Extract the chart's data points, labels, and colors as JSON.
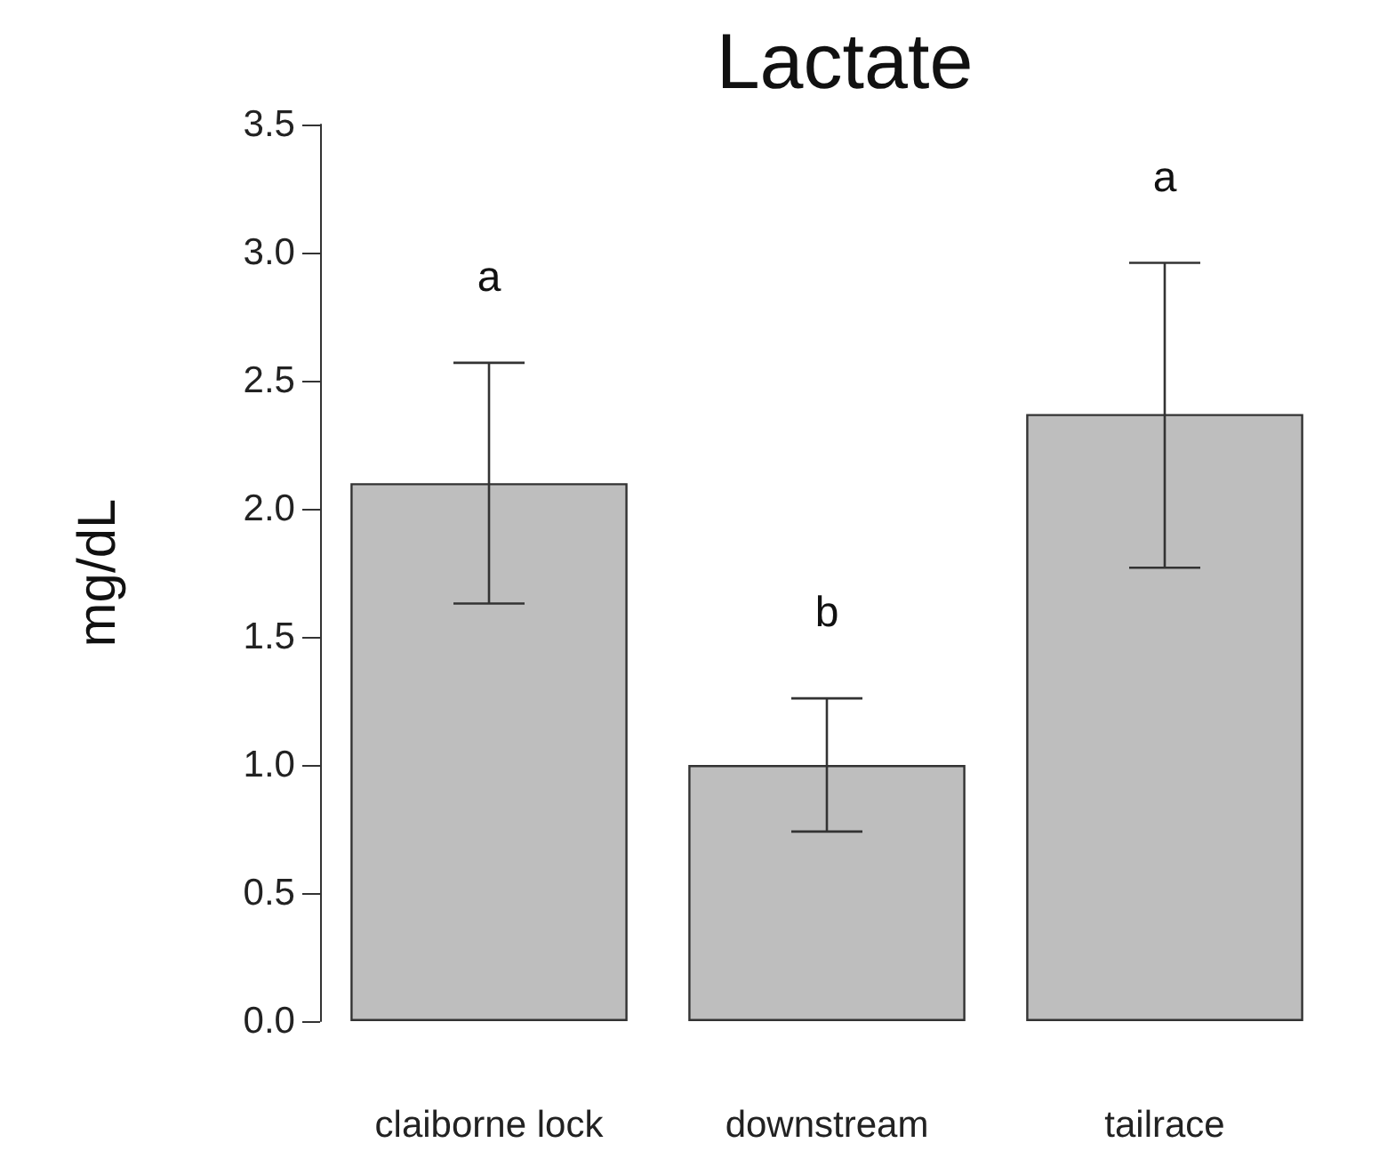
{
  "chart_data": {
    "type": "bar",
    "title": "Lactate",
    "ylabel": "mg/dL",
    "categories": [
      "claiborne lock",
      "downstream",
      "tailrace"
    ],
    "values": [
      2.1,
      1.0,
      2.37
    ],
    "color": "#bebebe",
    "errors": [
      [
        1.63,
        2.57
      ],
      [
        0.74,
        1.26
      ],
      [
        1.77,
        2.96
      ]
    ],
    "ylim": [
      0,
      3.5
    ],
    "yticks": [
      {
        "value": 0,
        "label": "0.0"
      },
      {
        "value": 0.5,
        "label": "0.5"
      },
      {
        "value": 1,
        "label": "1.0"
      },
      {
        "value": 1.5,
        "label": "1.5"
      },
      {
        "value": 2,
        "label": "2.0"
      },
      {
        "value": 2.5,
        "label": "2.5"
      },
      {
        "value": 3,
        "label": "3.0"
      },
      {
        "value": 3.5,
        "label": "3.5"
      }
    ],
    "annotations": [
      "a",
      "b",
      "a"
    ],
    "grid": false
  }
}
